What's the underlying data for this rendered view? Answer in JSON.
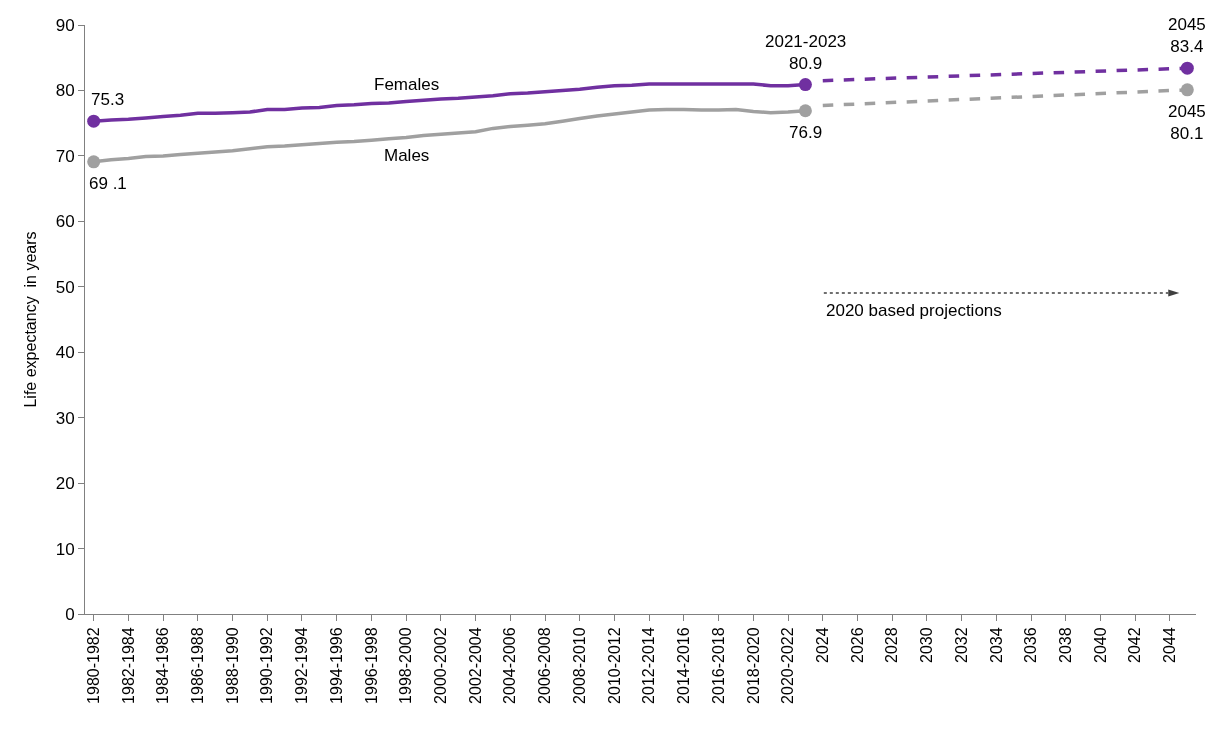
{
  "chart_data": {
    "type": "line",
    "ylabel": "Life expectancy  in years",
    "categories": [
      "1980-1982",
      null,
      "1982-1984",
      null,
      "1984-1986",
      null,
      "1986-1988",
      null,
      "1988-1990",
      null,
      "1990-1992",
      null,
      "1992-1994",
      null,
      "1994-1996",
      null,
      "1996-1998",
      null,
      "1998-2000",
      null,
      "2000-2002",
      null,
      "2002-2004",
      null,
      "2004-2006",
      null,
      "2006-2008",
      null,
      "2008-2010",
      null,
      "2010-2012",
      null,
      "2012-2014",
      null,
      "2014-2016",
      null,
      "2016-2018",
      null,
      "2018-2020",
      null,
      "2020-2022",
      null,
      "2024",
      null,
      "2026",
      null,
      "2028",
      null,
      "2030",
      null,
      "2032",
      null,
      "2034",
      null,
      "2036",
      null,
      "2038",
      null,
      "2040",
      null,
      "2042",
      null,
      "2044",
      null
    ],
    "series": [
      {
        "name": "Females",
        "color": "#7030a0",
        "values": [
          75.3,
          75.5,
          75.6,
          75.8,
          76.0,
          76.2,
          76.5,
          76.5,
          76.6,
          76.7,
          77.1,
          77.1,
          77.3,
          77.4,
          77.7,
          77.8,
          78.0,
          78.1,
          78.3,
          78.5,
          78.7,
          78.8,
          79.0,
          79.2,
          79.5,
          79.6,
          79.8,
          80.0,
          80.2,
          80.5,
          80.7,
          80.8,
          81.0,
          81.0,
          81.0,
          81.0,
          81.0,
          81.0,
          81.0,
          80.7,
          80.7,
          80.9,
          null,
          null,
          null,
          null,
          null,
          null,
          null,
          null,
          null,
          null,
          null,
          null,
          null,
          null,
          null,
          null,
          null,
          null,
          null,
          null,
          null,
          null
        ],
        "value_labels": [
          "75.3",
          null,
          null,
          null,
          null,
          null,
          null,
          null,
          null,
          null,
          null,
          null,
          null,
          null,
          null,
          null,
          null,
          null,
          null,
          null,
          null,
          null,
          null,
          null,
          null,
          null,
          null,
          null,
          null,
          null,
          null,
          null,
          null,
          null,
          null,
          null,
          null,
          null,
          null,
          null,
          null,
          "2021-2023\n80.9",
          null,
          null,
          null,
          null,
          null,
          null,
          null,
          null,
          null,
          null,
          null,
          null,
          null,
          null,
          null,
          null,
          null,
          null,
          null,
          null,
          null,
          null
        ]
      },
      {
        "name": "Males",
        "color": "#a0a0a0",
        "values": [
          69.1,
          69.4,
          69.6,
          69.9,
          70.0,
          70.2,
          70.4,
          70.6,
          70.8,
          71.1,
          71.4,
          71.5,
          71.7,
          71.9,
          72.1,
          72.2,
          72.4,
          72.6,
          72.8,
          73.1,
          73.3,
          73.5,
          73.7,
          74.2,
          74.5,
          74.7,
          74.9,
          75.3,
          75.7,
          76.1,
          76.4,
          76.7,
          77.0,
          77.1,
          77.1,
          77.0,
          77.0,
          77.1,
          76.8,
          76.6,
          76.7,
          76.9,
          null,
          null,
          null,
          null,
          null,
          null,
          null,
          null,
          null,
          null,
          null,
          null,
          null,
          null,
          null,
          null,
          null,
          null,
          null,
          null,
          null,
          null
        ],
        "value_labels": [
          "69 .1",
          null,
          null,
          null,
          null,
          null,
          null,
          null,
          null,
          null,
          null,
          null,
          null,
          null,
          null,
          null,
          null,
          null,
          null,
          null,
          null,
          null,
          null,
          null,
          null,
          null,
          null,
          null,
          null,
          null,
          null,
          null,
          null,
          null,
          null,
          null,
          null,
          null,
          null,
          null,
          null,
          "76.9",
          null,
          null,
          null,
          null,
          null,
          null,
          null,
          null,
          null,
          null,
          null,
          null,
          null,
          null,
          null,
          null,
          null,
          null,
          null,
          null,
          null,
          null
        ]
      },
      {
        "color": "#7030a0",
        "line_style": "dashed",
        "values": [
          null,
          null,
          null,
          null,
          null,
          null,
          null,
          null,
          null,
          null,
          null,
          null,
          null,
          null,
          null,
          null,
          null,
          null,
          null,
          null,
          null,
          null,
          null,
          null,
          null,
          null,
          null,
          null,
          null,
          null,
          null,
          null,
          null,
          null,
          null,
          null,
          null,
          null,
          null,
          null,
          null,
          null,
          81.5,
          null,
          null,
          null,
          null,
          null,
          null,
          null,
          null,
          null,
          null,
          null,
          null,
          null,
          null,
          null,
          null,
          null,
          null,
          null,
          null,
          83.4
        ],
        "value_labels": [
          null,
          null,
          null,
          null,
          null,
          null,
          null,
          null,
          null,
          null,
          null,
          null,
          null,
          null,
          null,
          null,
          null,
          null,
          null,
          null,
          null,
          null,
          null,
          null,
          null,
          null,
          null,
          null,
          null,
          null,
          null,
          null,
          null,
          null,
          null,
          null,
          null,
          null,
          null,
          null,
          null,
          null,
          null,
          null,
          null,
          null,
          null,
          null,
          null,
          null,
          null,
          null,
          null,
          null,
          null,
          null,
          null,
          null,
          null,
          null,
          null,
          null,
          null,
          "2045\n83.4"
        ]
      },
      {
        "color": "#a0a0a0",
        "line_style": "dashed",
        "values": [
          null,
          null,
          null,
          null,
          null,
          null,
          null,
          null,
          null,
          null,
          null,
          null,
          null,
          null,
          null,
          null,
          null,
          null,
          null,
          null,
          null,
          null,
          null,
          null,
          null,
          null,
          null,
          null,
          null,
          null,
          null,
          null,
          null,
          null,
          null,
          null,
          null,
          null,
          null,
          null,
          null,
          null,
          77.7,
          null,
          null,
          null,
          null,
          null,
          null,
          null,
          null,
          null,
          null,
          null,
          null,
          null,
          null,
          null,
          null,
          null,
          null,
          null,
          null,
          80.1
        ],
        "value_labels": [
          null,
          null,
          null,
          null,
          null,
          null,
          null,
          null,
          null,
          null,
          null,
          null,
          null,
          null,
          null,
          null,
          null,
          null,
          null,
          null,
          null,
          null,
          null,
          null,
          null,
          null,
          null,
          null,
          null,
          null,
          null,
          null,
          null,
          null,
          null,
          null,
          null,
          null,
          null,
          null,
          null,
          null,
          null,
          null,
          null,
          null,
          null,
          null,
          null,
          null,
          null,
          null,
          null,
          null,
          null,
          null,
          null,
          null,
          null,
          null,
          null,
          null,
          null,
          "2045\n80.1"
        ]
      }
    ],
    "annotations": [
      "2020 based projections"
    ],
    "ylim": [
      0,
      90
    ],
    "yticks": [
      0,
      10,
      20,
      30,
      40,
      50,
      60,
      70,
      80,
      90
    ],
    "grid": false,
    "legend": false,
    "line_style": "solid"
  }
}
